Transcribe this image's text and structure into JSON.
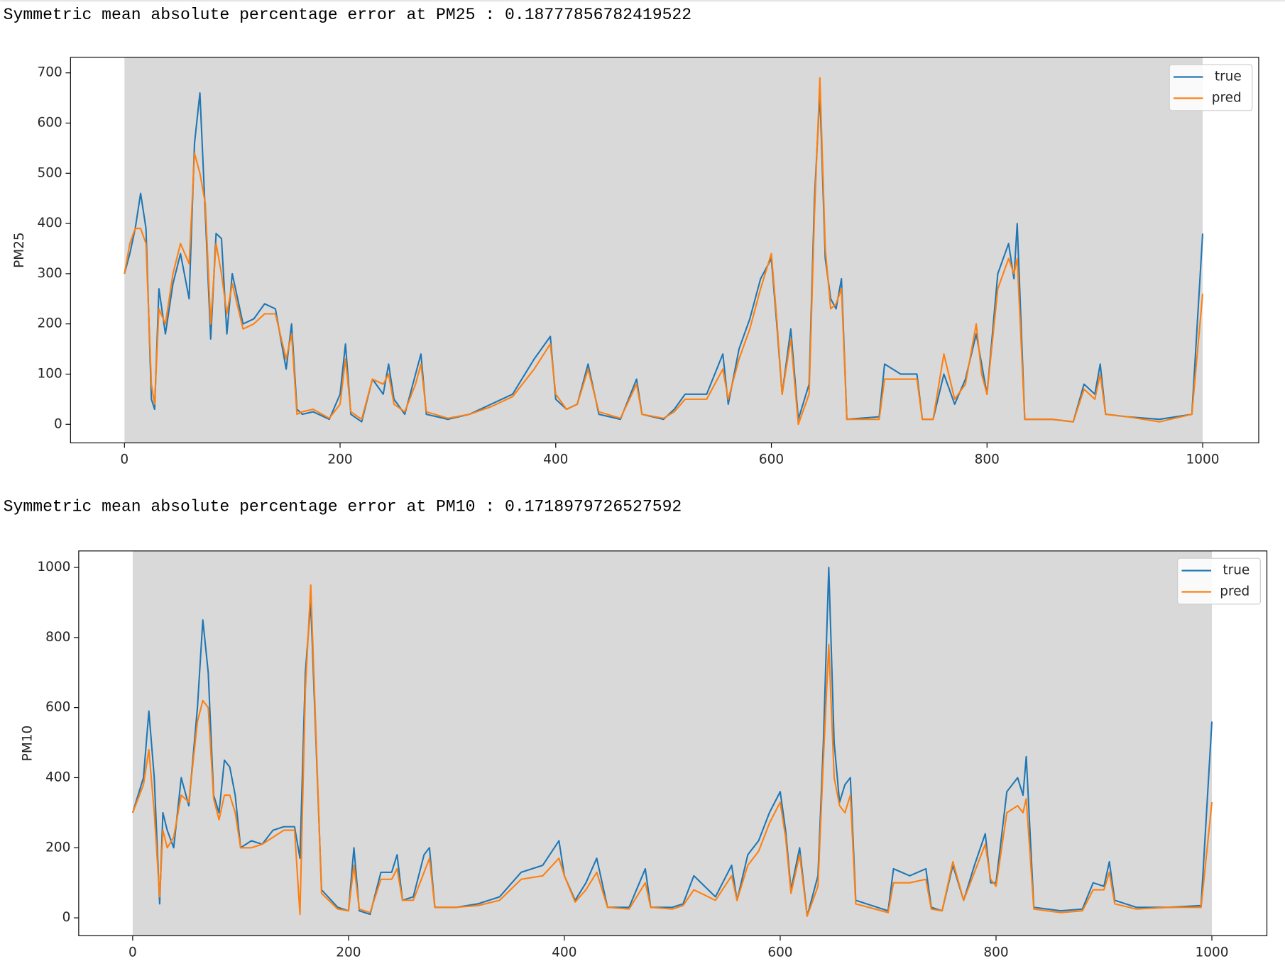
{
  "outputs": [
    "Symmetric mean absolute percentage error at PM25 : 0.18777856782419522",
    "Symmetric mean absolute percentage error at PM10 : 0.1718979726527592"
  ],
  "chart_data": [
    {
      "type": "line",
      "ylabel": "PM25",
      "x": [
        0,
        5,
        10,
        15,
        20,
        25,
        28,
        32,
        38,
        45,
        52,
        60,
        65,
        70,
        75,
        80,
        85,
        90,
        95,
        100,
        110,
        120,
        130,
        140,
        150,
        155,
        160,
        165,
        175,
        190,
        200,
        205,
        210,
        220,
        230,
        240,
        245,
        250,
        260,
        270,
        275,
        280,
        300,
        320,
        340,
        360,
        380,
        395,
        400,
        410,
        420,
        430,
        440,
        460,
        475,
        480,
        500,
        510,
        520,
        540,
        555,
        560,
        570,
        580,
        590,
        600,
        605,
        610,
        618,
        625,
        635,
        640,
        645,
        650,
        655,
        660,
        665,
        670,
        700,
        705,
        720,
        735,
        740,
        750,
        760,
        770,
        780,
        790,
        795,
        800,
        810,
        820,
        825,
        828,
        835,
        860,
        880,
        890,
        900,
        905,
        910,
        930,
        960,
        990,
        1000
      ],
      "series": [
        {
          "name": "true",
          "color": "#1f77b4",
          "values": [
            300,
            340,
            390,
            460,
            390,
            50,
            30,
            270,
            180,
            280,
            340,
            250,
            560,
            660,
            420,
            170,
            380,
            370,
            180,
            300,
            200,
            210,
            240,
            230,
            110,
            200,
            30,
            20,
            25,
            10,
            60,
            160,
            20,
            5,
            90,
            60,
            120,
            50,
            20,
            100,
            140,
            20,
            10,
            20,
            40,
            60,
            130,
            175,
            50,
            30,
            40,
            120,
            20,
            10,
            90,
            20,
            10,
            30,
            60,
            60,
            140,
            40,
            150,
            210,
            290,
            330,
            200,
            60,
            190,
            10,
            80,
            450,
            660,
            330,
            250,
            230,
            290,
            10,
            15,
            120,
            100,
            100,
            10,
            10,
            100,
            40,
            90,
            180,
            120,
            60,
            300,
            360,
            290,
            400,
            10,
            10,
            5,
            80,
            60,
            120,
            20,
            15,
            10,
            20,
            380
          ]
        },
        {
          "name": "pred",
          "color": "#ff7f0e",
          "values": [
            300,
            360,
            390,
            390,
            360,
            80,
            40,
            230,
            200,
            300,
            360,
            320,
            540,
            500,
            440,
            200,
            360,
            300,
            220,
            280,
            190,
            200,
            220,
            220,
            130,
            180,
            20,
            25,
            30,
            12,
            40,
            130,
            25,
            10,
            90,
            80,
            100,
            40,
            25,
            80,
            120,
            25,
            12,
            20,
            35,
            55,
            110,
            160,
            60,
            30,
            40,
            110,
            25,
            12,
            80,
            20,
            12,
            25,
            50,
            50,
            110,
            50,
            130,
            190,
            270,
            340,
            210,
            60,
            170,
            0,
            60,
            420,
            690,
            350,
            230,
            240,
            270,
            10,
            10,
            90,
            90,
            90,
            10,
            10,
            140,
            50,
            80,
            200,
            100,
            60,
            270,
            330,
            300,
            330,
            10,
            10,
            5,
            70,
            50,
            100,
            20,
            15,
            5,
            20,
            260
          ]
        }
      ],
      "xlim": [
        -50,
        1052
      ],
      "ylim": [
        -37,
        731
      ],
      "xticks": [
        0,
        200,
        400,
        600,
        800,
        1000
      ],
      "yticks": [
        0,
        100,
        200,
        300,
        400,
        500,
        600,
        700
      ],
      "shaded_span": [
        0,
        1000
      ],
      "shade_color": "#d9d9d9",
      "legend": "upper right"
    },
    {
      "type": "line",
      "ylabel": "PM10",
      "x": [
        0,
        5,
        10,
        15,
        20,
        25,
        28,
        32,
        38,
        45,
        52,
        60,
        65,
        70,
        75,
        80,
        85,
        90,
        95,
        100,
        110,
        120,
        130,
        140,
        150,
        155,
        160,
        165,
        175,
        190,
        200,
        205,
        210,
        220,
        230,
        240,
        245,
        250,
        260,
        270,
        275,
        280,
        300,
        320,
        340,
        360,
        380,
        395,
        400,
        410,
        420,
        430,
        440,
        460,
        475,
        480,
        500,
        510,
        520,
        540,
        555,
        560,
        570,
        580,
        590,
        600,
        605,
        610,
        618,
        625,
        635,
        640,
        645,
        650,
        655,
        660,
        665,
        670,
        700,
        705,
        720,
        735,
        740,
        750,
        760,
        770,
        780,
        790,
        795,
        800,
        810,
        820,
        825,
        828,
        835,
        860,
        880,
        890,
        900,
        905,
        910,
        930,
        960,
        990,
        1000
      ],
      "series": [
        {
          "name": "true",
          "color": "#1f77b4",
          "values": [
            300,
            350,
            400,
            590,
            400,
            40,
            300,
            250,
            200,
            400,
            320,
            600,
            850,
            700,
            350,
            300,
            450,
            430,
            350,
            200,
            220,
            210,
            250,
            260,
            260,
            170,
            700,
            900,
            80,
            30,
            20,
            200,
            20,
            10,
            130,
            130,
            180,
            50,
            60,
            180,
            200,
            30,
            30,
            40,
            60,
            130,
            150,
            220,
            120,
            50,
            100,
            170,
            30,
            30,
            140,
            30,
            30,
            40,
            120,
            60,
            150,
            50,
            180,
            220,
            300,
            360,
            250,
            80,
            200,
            5,
            120,
            500,
            1000,
            500,
            330,
            380,
            400,
            50,
            20,
            140,
            120,
            140,
            30,
            20,
            150,
            50,
            150,
            240,
            100,
            100,
            360,
            400,
            350,
            460,
            30,
            20,
            25,
            100,
            90,
            160,
            50,
            30,
            30,
            35,
            560
          ]
        },
        {
          "name": "pred",
          "color": "#ff7f0e",
          "values": [
            300,
            340,
            380,
            480,
            300,
            60,
            250,
            200,
            230,
            350,
            330,
            560,
            620,
            600,
            340,
            280,
            350,
            350,
            300,
            200,
            200,
            210,
            230,
            250,
            250,
            10,
            650,
            950,
            70,
            25,
            20,
            150,
            25,
            15,
            110,
            110,
            140,
            50,
            50,
            130,
            170,
            30,
            30,
            35,
            50,
            110,
            120,
            170,
            120,
            45,
            80,
            130,
            30,
            25,
            100,
            30,
            25,
            35,
            80,
            50,
            120,
            50,
            150,
            190,
            270,
            330,
            230,
            70,
            180,
            5,
            90,
            450,
            780,
            400,
            320,
            300,
            350,
            40,
            15,
            100,
            100,
            110,
            25,
            20,
            160,
            50,
            130,
            210,
            110,
            90,
            300,
            320,
            300,
            340,
            25,
            15,
            20,
            80,
            80,
            130,
            40,
            25,
            30,
            30,
            330
          ]
        }
      ],
      "xlim": [
        -50,
        1051
      ],
      "ylim": [
        -51,
        1047
      ],
      "xticks": [
        0,
        200,
        400,
        600,
        800,
        1000
      ],
      "yticks": [
        0,
        200,
        400,
        600,
        800,
        1000
      ],
      "shaded_span": [
        0,
        1000
      ],
      "shade_color": "#d9d9d9",
      "legend": "upper right"
    }
  ]
}
